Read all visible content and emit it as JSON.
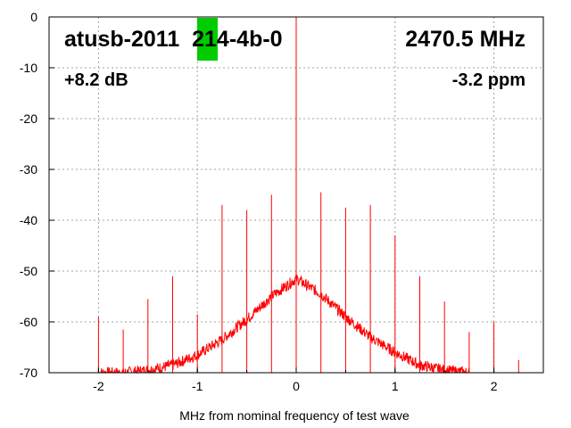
{
  "chart_data": {
    "type": "line",
    "title": "atusb-2011  214-4b-0",
    "title_right": "2470.5 MHz",
    "annotation_left": "+8.2 dB",
    "annotation_right": "-3.2 ppm",
    "xlabel": "MHz from nominal frequency of test wave",
    "ylabel": "",
    "xlim": [
      -2.5,
      2.5
    ],
    "ylim": [
      -70,
      0
    ],
    "xticks": [
      -2,
      -1,
      0,
      1,
      2
    ],
    "yticks": [
      0,
      -10,
      -20,
      -30,
      -40,
      -50,
      -60,
      -70
    ],
    "grid": true,
    "colors": {
      "trace": "#ff0000",
      "marker": "#00cc00",
      "grid": "#a0a0a0",
      "text": "#000000"
    },
    "noise_floor": {
      "x": [
        -2.0,
        -1.75,
        -1.5,
        -1.25,
        -1.0,
        -0.75,
        -0.5,
        -0.25,
        0.0,
        0.25,
        0.5,
        0.75,
        1.0,
        1.25,
        1.5,
        1.75
      ],
      "y": [
        -70,
        -70,
        -69.5,
        -68.5,
        -66.5,
        -63.5,
        -59.5,
        -55,
        -51.5,
        -54.5,
        -59,
        -63,
        -66,
        -68.5,
        -69.5,
        -70
      ]
    },
    "spurs": {
      "x": [
        -2.0,
        -1.75,
        -1.5,
        -1.25,
        -1.0,
        -0.75,
        -0.5,
        -0.25,
        0.0,
        0.25,
        0.5,
        0.75,
        1.0,
        1.25,
        1.5,
        1.75,
        2.0,
        2.25
      ],
      "y": [
        -59,
        -61.5,
        -55.5,
        -51,
        -58.5,
        -37,
        -38,
        -35,
        0,
        -34.5,
        -37.5,
        -37,
        -43,
        -51,
        -56,
        -62,
        -60,
        -67.5
      ]
    }
  }
}
